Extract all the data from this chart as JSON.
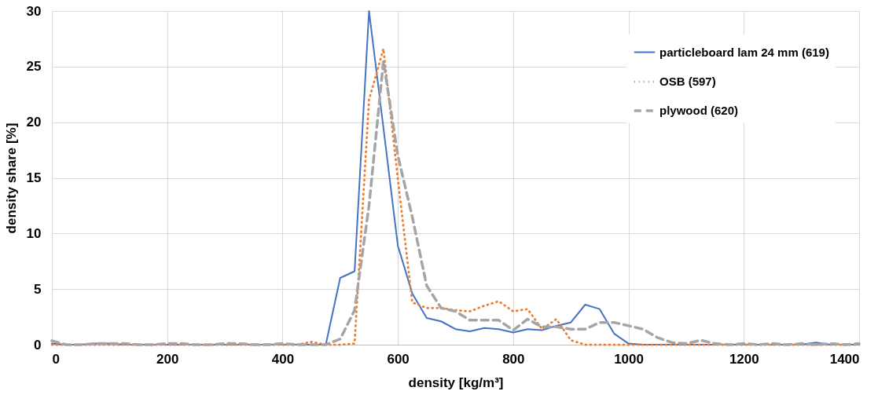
{
  "chart_data": {
    "type": "line",
    "xlabel": "density [kg/m³]",
    "ylabel": "density share [%]",
    "x": [
      0,
      25,
      50,
      75,
      100,
      125,
      150,
      175,
      200,
      225,
      250,
      275,
      300,
      325,
      350,
      375,
      400,
      425,
      450,
      475,
      500,
      525,
      550,
      575,
      600,
      625,
      650,
      675,
      700,
      725,
      750,
      775,
      800,
      825,
      850,
      875,
      900,
      925,
      950,
      975,
      1000,
      1025,
      1050,
      1075,
      1100,
      1125,
      1150,
      1175,
      1200,
      1225,
      1250,
      1275,
      1300,
      1325,
      1350,
      1375,
      1400
    ],
    "xlim": [
      0,
      1400
    ],
    "xticks": [
      0,
      200,
      400,
      600,
      800,
      1000,
      1200,
      1400
    ],
    "ylim": [
      0,
      30
    ],
    "yticks": [
      0,
      5,
      10,
      15,
      20,
      25,
      30
    ],
    "grid": true,
    "legend": "top right",
    "marker": "none",
    "series": [
      {
        "name": "particleboard lam 24 mm (619)",
        "color": "#4472c4",
        "line_style": "solid",
        "values": [
          0.1,
          0,
          0,
          0.1,
          0.1,
          0,
          0,
          0,
          0,
          0,
          0,
          0,
          0,
          0,
          0,
          0,
          0,
          0,
          0,
          0,
          6.0,
          6.6,
          30,
          19.5,
          8.9,
          4.6,
          2.4,
          2.1,
          1.4,
          1.2,
          1.5,
          1.4,
          1.1,
          1.4,
          1.3,
          1.7,
          2.0,
          3.6,
          3.2,
          1.0,
          0.1,
          0,
          0,
          0,
          0,
          0,
          0,
          0,
          0,
          0,
          0,
          0,
          0,
          0.2,
          0,
          0,
          0
        ]
      },
      {
        "name": "OSB (597)",
        "color": "#ed7d31",
        "line_style": "dotted",
        "values": [
          0,
          0,
          0,
          0,
          0,
          0,
          0,
          0,
          0,
          0,
          0,
          0,
          0,
          0,
          0,
          0,
          0,
          0,
          0.25,
          0,
          0,
          0.1,
          22,
          26.6,
          14.9,
          3.8,
          3.3,
          3.3,
          3.1,
          3.0,
          3.5,
          3.9,
          3.0,
          3.2,
          1.4,
          2.3,
          0.4,
          0,
          0,
          0,
          0,
          0,
          0,
          0,
          0,
          0,
          0,
          0,
          0,
          0,
          0,
          0,
          0,
          0,
          0,
          0,
          0
        ]
      },
      {
        "name": "plywood (620)",
        "color": "#a5a5a5",
        "line_style": "dashed",
        "values": [
          0.35,
          0,
          0,
          0.1,
          0.1,
          0.1,
          0,
          0,
          0.1,
          0.1,
          0,
          0,
          0.1,
          0.1,
          0,
          0,
          0.1,
          0,
          0,
          0,
          0.5,
          3.1,
          12.5,
          25.5,
          17,
          11.5,
          5.3,
          3.3,
          3.0,
          2.2,
          2.2,
          2.2,
          1.3,
          2.3,
          1.6,
          1.6,
          1.4,
          1.4,
          2.0,
          2.0,
          1.7,
          1.4,
          0.65,
          0.2,
          0.1,
          0.4,
          0.1,
          0,
          0.1,
          0,
          0.1,
          0,
          0.1,
          0,
          0.1,
          0,
          0.1
        ]
      }
    ]
  }
}
